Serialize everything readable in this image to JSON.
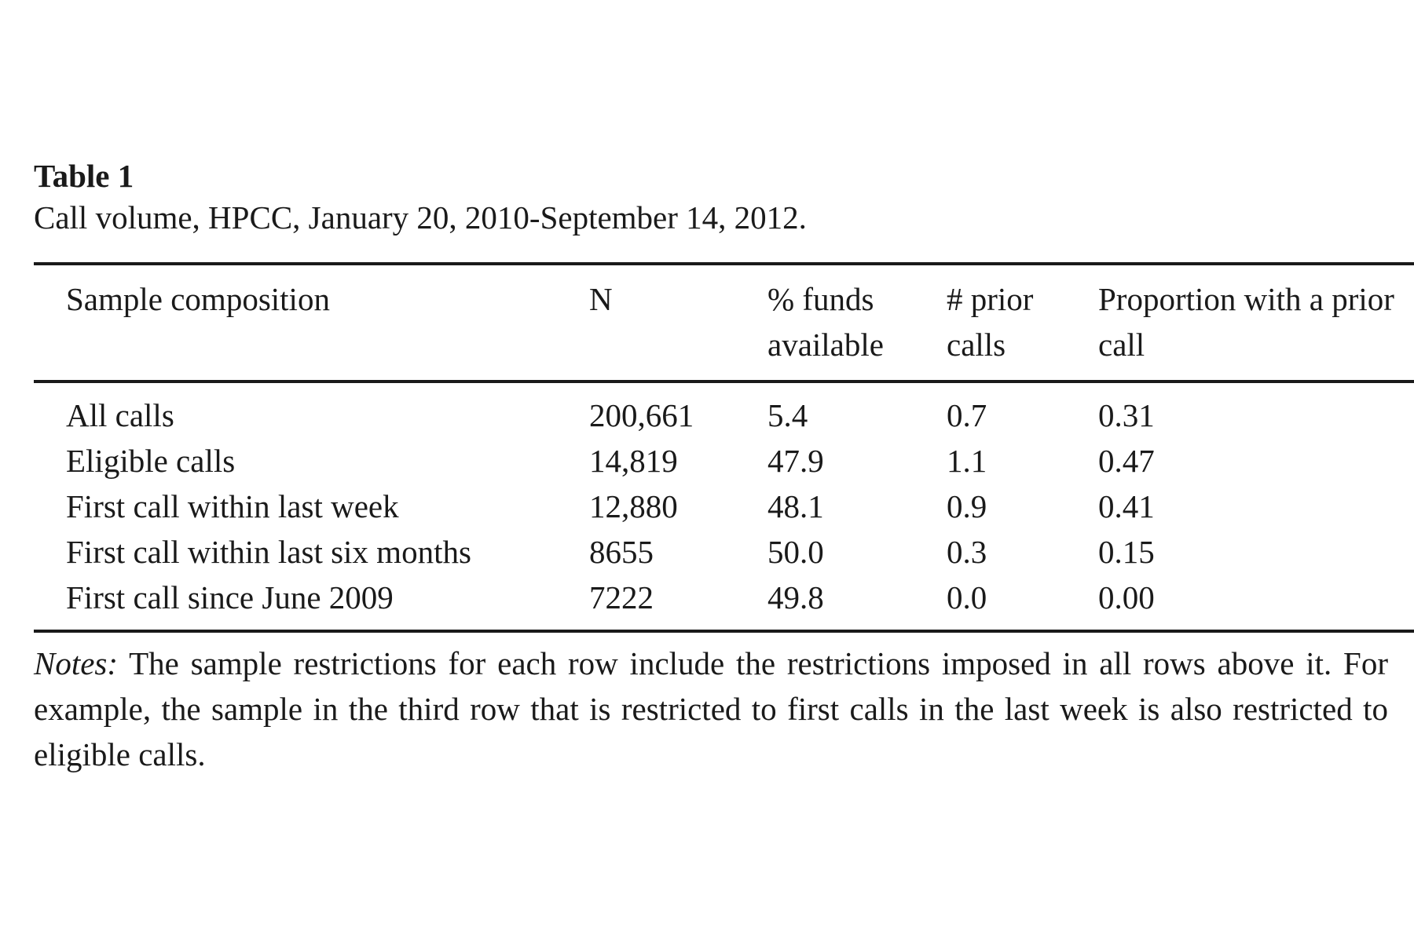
{
  "caption": {
    "label": "Table 1",
    "title": "Call volume, HPCC, January 20, 2010-September 14, 2012."
  },
  "table": {
    "headers": [
      "Sample composition",
      "N",
      "% funds available",
      "# prior calls",
      "Proportion with a prior call"
    ],
    "rows": [
      [
        "All calls",
        "200,661",
        "5.4",
        "0.7",
        "0.31"
      ],
      [
        "Eligible calls",
        "14,819",
        "47.9",
        "1.1",
        "0.47"
      ],
      [
        "First call within last week",
        "12,880",
        "48.1",
        "0.9",
        "0.41"
      ],
      [
        "First call within last six months",
        "8655",
        "50.0",
        "0.3",
        "0.15"
      ],
      [
        "First call since June 2009",
        "7222",
        "49.8",
        "0.0",
        "0.00"
      ]
    ]
  },
  "notes": {
    "label": "Notes:",
    "text": "The sample restrictions for each row include the restrictions imposed in all rows above it. For example, the sample in the third row that is restricted to first calls in the last week is also restricted to eligible calls."
  }
}
